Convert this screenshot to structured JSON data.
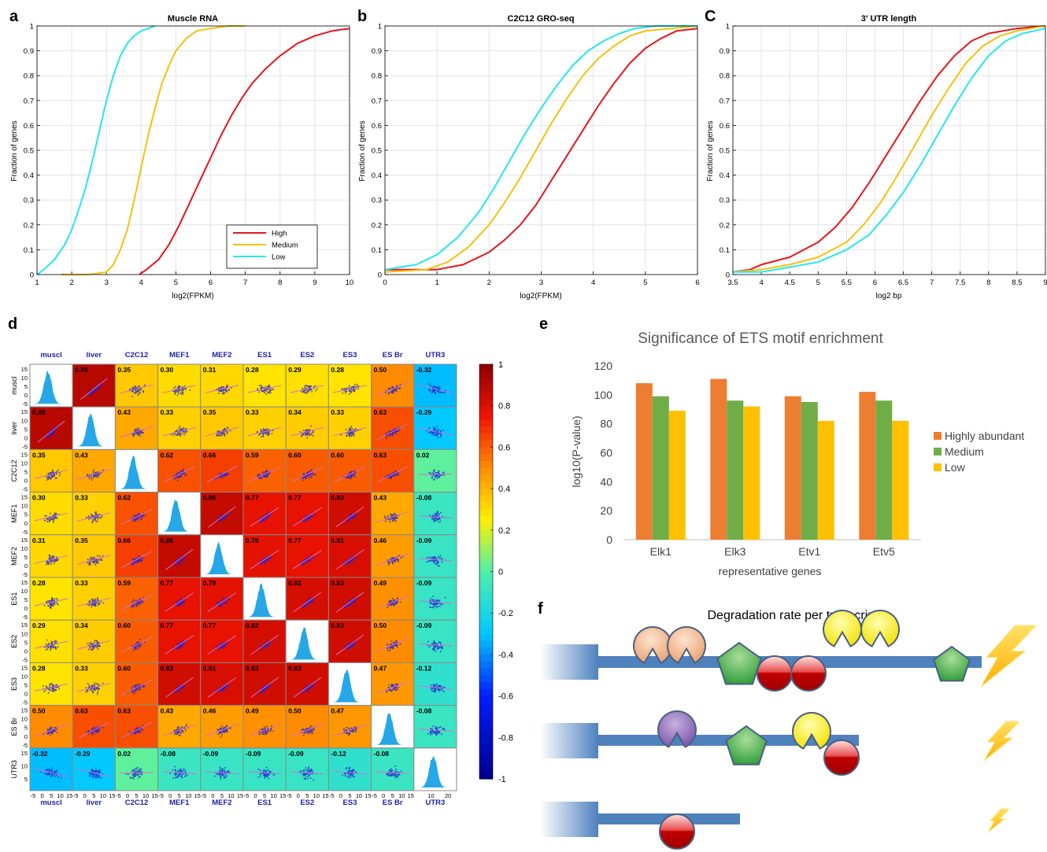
{
  "panels": {
    "a": {
      "letter": "a",
      "title": "Muscle RNA",
      "xlabel": "log2(FPKM)",
      "ylabel": "Fraction of genes",
      "xlim": [
        1,
        10
      ],
      "ylim": [
        0,
        1
      ],
      "xticks": [
        "1",
        "2",
        "3",
        "4",
        "5",
        "6",
        "7",
        "8",
        "9",
        "10"
      ],
      "yticks": [
        "0",
        "0.1",
        "0.2",
        "0.3",
        "0.4",
        "0.5",
        "0.6",
        "0.7",
        "0.8",
        "0.9",
        "1"
      ],
      "legend": [
        "High",
        "Medium",
        "Low"
      ]
    },
    "b": {
      "letter": "b",
      "title": "C2C12 GRO-seq",
      "xlabel": "log2(FPKM)",
      "ylabel": "Fraction of genes",
      "xlim": [
        0,
        6
      ],
      "ylim": [
        0,
        1
      ],
      "xticks": [
        "0",
        "1",
        "2",
        "3",
        "4",
        "5",
        "6"
      ],
      "yticks": [
        "0",
        "0.1",
        "0.2",
        "0.3",
        "0.4",
        "0.5",
        "0.6",
        "0.7",
        "0.8",
        "0.9",
        "1"
      ]
    },
    "c": {
      "letter": "C",
      "title": "3' UTR length",
      "xlabel": "log2 bp",
      "ylabel": "Fraction of genes",
      "xlim": [
        3.5,
        9
      ],
      "ylim": [
        0,
        1
      ],
      "xticks": [
        "3.5",
        "4",
        "4.5",
        "5",
        "5.5",
        "6",
        "6.5",
        "7",
        "7.5",
        "8",
        "8.5",
        "9"
      ],
      "yticks": [
        "0",
        "0.1",
        "0.2",
        "0.3",
        "0.4",
        "0.5",
        "0.6",
        "0.7",
        "0.8",
        "0.9",
        "1"
      ]
    },
    "d": {
      "letter": "d",
      "labels": [
        "muscl",
        "liver",
        "C2C12",
        "MEF1",
        "MEF2",
        "ES1",
        "ES2",
        "ES3",
        "ES Br",
        "UTR3"
      ],
      "colorbar_ticks": [
        "1",
        "0.8",
        "0.6",
        "0.4",
        "0.2",
        "0",
        "-0.2",
        "-0.4",
        "-0.6",
        "-0.8",
        "-1"
      ],
      "yaxis_ticks": [
        "15",
        "10",
        "5",
        "0",
        "-5"
      ],
      "yaxis_ticks_utr": [
        "15",
        "10",
        "5"
      ],
      "xaxis_ticks": [
        "-5",
        "0",
        "5",
        "10",
        "15"
      ],
      "xaxis_ticks_utr": [
        "10",
        "20"
      ]
    },
    "e": {
      "letter": "e",
      "title": "Significance of ETS motif enrichment",
      "xlabel": "representative genes",
      "ylabel": "log10(P-value)",
      "yticks": [
        "0",
        "20",
        "40",
        "60",
        "80",
        "100",
        "120"
      ]
    },
    "f": {
      "letter": "f",
      "title": "Degradation rate per transcript"
    }
  },
  "colors": {
    "high": "#e8141c",
    "medium": "#f4c20d",
    "low": "#25e6ee",
    "bar_high": "#ed7d31",
    "bar_medium": "#70ad47",
    "bar_low": "#ffc000",
    "transcript": "#4f81bd",
    "pacman_orange": "#f5c6a0",
    "pacman_purple": "#8e6bb5",
    "pacman_yellow": "#ffee00",
    "pentagon": "#3da63d",
    "circle": "#c00000",
    "bolt": "#ffc000"
  },
  "chart_data": [
    {
      "type": "line",
      "panel": "a",
      "title": "Muscle RNA",
      "xlabel": "log2(FPKM)",
      "ylabel": "Fraction of genes",
      "xlim": [
        1,
        10
      ],
      "ylim": [
        0,
        1
      ],
      "legend_position": "lower-right",
      "grid": true,
      "series": [
        {
          "name": "High",
          "color": "#e8141c",
          "x": [
            3.95,
            4.15,
            4.5,
            4.8,
            5.1,
            5.4,
            5.7,
            6.0,
            6.3,
            6.6,
            6.9,
            7.2,
            7.6,
            8.0,
            8.5,
            9.0,
            9.5,
            10.0
          ],
          "y": [
            0.0,
            0.02,
            0.06,
            0.12,
            0.2,
            0.29,
            0.38,
            0.47,
            0.56,
            0.64,
            0.71,
            0.77,
            0.83,
            0.88,
            0.93,
            0.96,
            0.98,
            0.99
          ]
        },
        {
          "name": "Medium",
          "color": "#f4c20d",
          "x": [
            1.7,
            2.5,
            3.0,
            3.2,
            3.4,
            3.6,
            3.8,
            4.0,
            4.2,
            4.4,
            4.6,
            4.8,
            5.0,
            5.3,
            5.6,
            6.0,
            6.5,
            7.0
          ],
          "y": [
            0.0,
            0.0,
            0.01,
            0.04,
            0.1,
            0.18,
            0.3,
            0.43,
            0.56,
            0.67,
            0.77,
            0.84,
            0.9,
            0.95,
            0.98,
            0.99,
            1.0,
            1.0
          ]
        },
        {
          "name": "Low",
          "color": "#25e6ee",
          "x": [
            1.0,
            1.2,
            1.5,
            1.8,
            2.0,
            2.2,
            2.4,
            2.6,
            2.8,
            3.0,
            3.2,
            3.4,
            3.6,
            3.8,
            4.0,
            4.2,
            4.4
          ],
          "y": [
            0.0,
            0.02,
            0.06,
            0.12,
            0.18,
            0.26,
            0.35,
            0.46,
            0.58,
            0.7,
            0.8,
            0.88,
            0.93,
            0.96,
            0.98,
            0.99,
            1.0
          ]
        }
      ]
    },
    {
      "type": "line",
      "panel": "b",
      "title": "C2C12 GRO-seq",
      "xlabel": "log2(FPKM)",
      "ylabel": "Fraction of genes",
      "xlim": [
        0,
        6
      ],
      "ylim": [
        0,
        1
      ],
      "grid": true,
      "series": [
        {
          "name": "High",
          "color": "#e8141c",
          "x": [
            0.0,
            1.0,
            1.5,
            2.0,
            2.3,
            2.6,
            2.9,
            3.2,
            3.5,
            3.8,
            4.1,
            4.4,
            4.7,
            5.0,
            5.3,
            5.6,
            6.0
          ],
          "y": [
            0.02,
            0.02,
            0.04,
            0.09,
            0.14,
            0.2,
            0.28,
            0.38,
            0.48,
            0.58,
            0.68,
            0.77,
            0.85,
            0.91,
            0.95,
            0.98,
            0.99
          ]
        },
        {
          "name": "Medium",
          "color": "#f4c20d",
          "x": [
            0.0,
            0.8,
            1.2,
            1.6,
            2.0,
            2.3,
            2.6,
            2.9,
            3.2,
            3.5,
            3.8,
            4.1,
            4.4,
            4.7,
            5.0,
            5.5,
            6.0
          ],
          "y": [
            0.01,
            0.02,
            0.05,
            0.11,
            0.2,
            0.29,
            0.39,
            0.5,
            0.61,
            0.71,
            0.8,
            0.87,
            0.92,
            0.96,
            0.98,
            0.99,
            1.0
          ]
        },
        {
          "name": "Low",
          "color": "#25e6ee",
          "x": [
            0.0,
            0.6,
            1.0,
            1.4,
            1.8,
            2.1,
            2.4,
            2.7,
            3.0,
            3.3,
            3.6,
            3.9,
            4.2,
            4.5,
            4.8,
            5.2,
            6.0
          ],
          "y": [
            0.02,
            0.04,
            0.08,
            0.15,
            0.25,
            0.35,
            0.46,
            0.57,
            0.67,
            0.76,
            0.84,
            0.9,
            0.94,
            0.97,
            0.99,
            1.0,
            1.0
          ]
        }
      ]
    },
    {
      "type": "line",
      "panel": "C",
      "title": "3' UTR length",
      "xlabel": "log2 bp",
      "ylabel": "Fraction of genes",
      "xlim": [
        3.5,
        9
      ],
      "ylim": [
        0,
        1
      ],
      "grid": true,
      "series": [
        {
          "name": "High",
          "color": "#e8141c",
          "x": [
            3.5,
            3.8,
            4.0,
            4.5,
            5.0,
            5.3,
            5.6,
            5.9,
            6.2,
            6.5,
            6.8,
            7.1,
            7.4,
            7.7,
            8.0,
            8.5,
            9.0
          ],
          "y": [
            0.01,
            0.02,
            0.04,
            0.07,
            0.13,
            0.19,
            0.27,
            0.37,
            0.48,
            0.59,
            0.7,
            0.8,
            0.88,
            0.94,
            0.97,
            0.99,
            1.0
          ]
        },
        {
          "name": "Medium",
          "color": "#f4c20d",
          "x": [
            3.5,
            4.0,
            4.5,
            5.0,
            5.5,
            5.8,
            6.1,
            6.4,
            6.7,
            7.0,
            7.3,
            7.6,
            7.9,
            8.2,
            8.5,
            9.0
          ],
          "y": [
            0.01,
            0.02,
            0.04,
            0.07,
            0.13,
            0.2,
            0.29,
            0.4,
            0.52,
            0.64,
            0.75,
            0.85,
            0.92,
            0.96,
            0.98,
            1.0
          ]
        },
        {
          "name": "Low",
          "color": "#25e6ee",
          "x": [
            3.5,
            4.0,
            4.5,
            5.0,
            5.5,
            5.9,
            6.2,
            6.5,
            6.8,
            7.1,
            7.4,
            7.7,
            8.0,
            8.3,
            8.6,
            9.0
          ],
          "y": [
            0.01,
            0.01,
            0.03,
            0.05,
            0.1,
            0.16,
            0.24,
            0.33,
            0.44,
            0.56,
            0.68,
            0.79,
            0.88,
            0.94,
            0.97,
            0.99
          ]
        }
      ]
    },
    {
      "type": "heatmap",
      "panel": "d",
      "rows": [
        "muscl",
        "liver",
        "C2C12",
        "MEF1",
        "MEF2",
        "ES1",
        "ES2",
        "ES3",
        "ES Br",
        "UTR3"
      ],
      "columns": [
        "muscl",
        "liver",
        "C2C12",
        "MEF1",
        "MEF2",
        "ES1",
        "ES2",
        "ES3",
        "ES Br",
        "UTR3"
      ],
      "colorbar_range": [
        -1,
        1
      ],
      "values": [
        [
          null,
          "0.89",
          "0.35",
          "0.30",
          "0.31",
          "0.28",
          "0.29",
          "0.28",
          "0.50",
          "-0.32"
        ],
        [
          "0.89",
          null,
          "0.43",
          "0.33",
          "0.35",
          "0.33",
          "0.34",
          "0.33",
          "0.63",
          "-0.29"
        ],
        [
          "0.35",
          "0.43",
          null,
          "0.62",
          "0.66",
          "0.59",
          "0.60",
          "0.60",
          "0.63",
          "0.02"
        ],
        [
          "0.30",
          "0.33",
          "0.62",
          null,
          "0.86",
          "0.77",
          "0.77",
          "0.83",
          "0.43",
          "-0.08"
        ],
        [
          "0.31",
          "0.35",
          "0.66",
          "0.86",
          null,
          "0.78",
          "0.77",
          "0.81",
          "0.46",
          "-0.09"
        ],
        [
          "0.28",
          "0.33",
          "0.59",
          "0.77",
          "0.78",
          null,
          "0.82",
          "0.83",
          "0.49",
          "-0.09"
        ],
        [
          "0.29",
          "0.34",
          "0.60",
          "0.77",
          "0.77",
          "0.82",
          null,
          "0.83",
          "0.50",
          "-0.09"
        ],
        [
          "0.28",
          "0.33",
          "0.60",
          "0.83",
          "0.81",
          "0.83",
          "0.83",
          null,
          "0.47",
          "-0.12"
        ],
        [
          "0.50",
          "0.63",
          "0.63",
          "0.43",
          "0.46",
          "0.49",
          "0.50",
          "0.47",
          null,
          "-0.08"
        ],
        [
          "-0.32",
          "-0.29",
          "0.02",
          "-0.08",
          "-0.09",
          "-0.09",
          "-0.09",
          "-0.12",
          "-0.08",
          null
        ]
      ]
    },
    {
      "type": "bar",
      "panel": "e",
      "title": "Significance of ETS motif enrichment",
      "xlabel": "representative genes",
      "ylabel": "log10(P-value)",
      "ylim": [
        0,
        120
      ],
      "legend_position": "right",
      "categories": [
        "Elk1",
        "Elk3",
        "Etv1",
        "Etv5"
      ],
      "series": [
        {
          "name": "Highly abundant",
          "color": "#ed7d31",
          "values": [
            108,
            111,
            99,
            102
          ]
        },
        {
          "name": "Medium",
          "color": "#70ad47",
          "values": [
            99,
            96,
            95,
            96
          ]
        },
        {
          "name": "Low",
          "color": "#ffc000",
          "values": [
            89,
            92,
            82,
            82
          ]
        }
      ]
    }
  ]
}
